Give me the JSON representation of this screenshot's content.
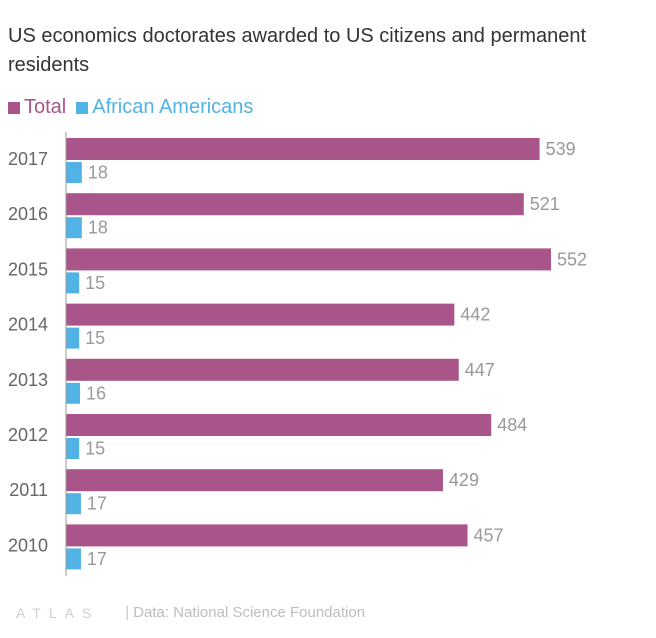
{
  "chart_data": {
    "type": "bar",
    "orientation": "horizontal",
    "title": "US economics doctorates awarded to US citizens and permanent residents",
    "categories": [
      "2017",
      "2016",
      "2015",
      "2014",
      "2013",
      "2012",
      "2011",
      "2010"
    ],
    "series": [
      {
        "name": "Total",
        "color": "#a9558a",
        "values": [
          539,
          521,
          552,
          442,
          447,
          484,
          429,
          457
        ]
      },
      {
        "name": "African Americans",
        "color": "#51b2e5",
        "values": [
          18,
          18,
          15,
          15,
          16,
          15,
          17,
          17
        ]
      }
    ],
    "xlim": [
      0,
      552
    ],
    "grid": false,
    "legend_position": "top-left",
    "data_labels": true
  },
  "footer": {
    "logo": "ATLAS",
    "separator": "|",
    "source": "Data: National Science Foundation"
  }
}
